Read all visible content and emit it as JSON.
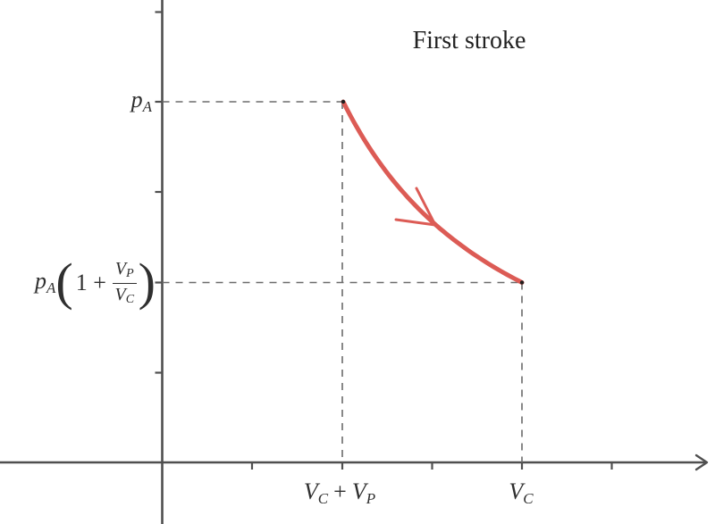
{
  "figure": {
    "title": "First stroke",
    "colors": {
      "curve": "#dc5b55",
      "axis": "#4f4f4f",
      "dashed_guide": "#6b6b6b",
      "endpoint": "#1f1f1f"
    },
    "curve": {
      "start_x_label": "V_C + V_P",
      "start_y_label": "p_A",
      "end_x_label": "V_C",
      "end_y_label": "p_A(1 + V_P/V_C)"
    }
  },
  "labels": {
    "pressure_top": {
      "base": "p",
      "sub": "A"
    },
    "pressure_bottom": {
      "base": "p",
      "sub": "A",
      "open": "(",
      "inner": "1 +",
      "num_base": "V",
      "num_sub": "P",
      "den_base": "V",
      "den_sub": "C",
      "close": ")"
    },
    "volume_left": {
      "first_base": "V",
      "first_sub": "C",
      "operator": "+",
      "second_base": "V",
      "second_sub": "P"
    },
    "volume_right": {
      "base": "V",
      "sub": "C"
    }
  }
}
